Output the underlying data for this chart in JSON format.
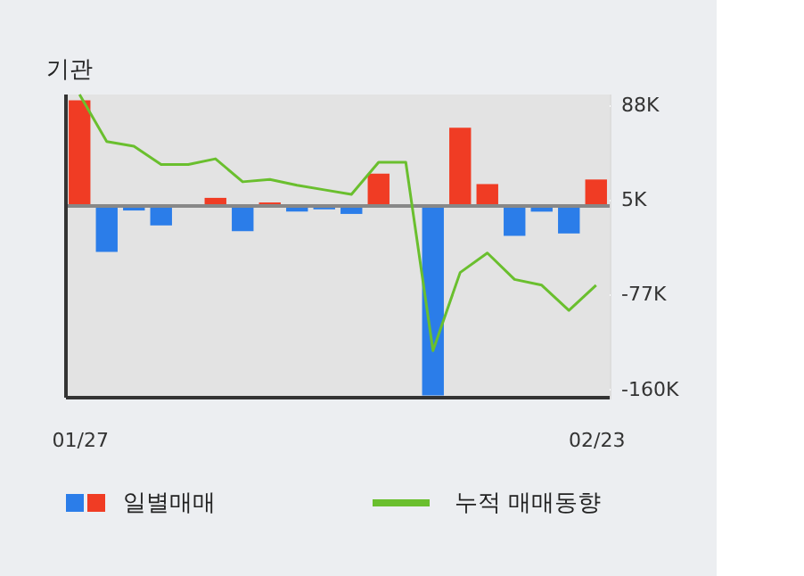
{
  "chart_data": {
    "type": "bar",
    "title": "기관",
    "categories": [
      "01/27",
      null,
      null,
      null,
      null,
      null,
      null,
      null,
      null,
      null,
      null,
      null,
      null,
      null,
      null,
      null,
      null,
      null,
      null,
      "02/23"
    ],
    "series": [
      {
        "name": "일별매매",
        "values": [
          92,
          -40,
          -4,
          -17,
          0,
          7,
          -22,
          3,
          -5,
          -3,
          -7,
          28,
          0,
          -165,
          68,
          19,
          -26,
          -5,
          -24,
          23
        ],
        "colors": [
          "#f03c24",
          "#2b7de9",
          "#2b7de9",
          "#2b7de9",
          "#f03c24",
          "#f03c24",
          "#2b7de9",
          "#f03c24",
          "#2b7de9",
          "#2b7de9",
          "#2b7de9",
          "#f03c24",
          "#f03c24",
          "#2b7de9",
          "#f03c24",
          "#f03c24",
          "#2b7de9",
          "#2b7de9",
          "#2b7de9",
          "#f03c24"
        ]
      },
      {
        "name": "누적 매매동향",
        "type": "line",
        "color": "#6abf2e",
        "values": [
          97,
          56,
          52,
          36,
          36,
          41,
          21,
          23,
          18,
          14,
          10,
          38,
          38,
          -126,
          -58,
          -41,
          -64,
          -69,
          -91,
          -69
        ]
      }
    ],
    "ylim": [
      -167,
      97
    ],
    "yticks": [
      {
        "value": 88,
        "label": "88K"
      },
      {
        "value": 5,
        "label": "5K"
      },
      {
        "value": -77,
        "label": "-77K"
      },
      {
        "value": -160,
        "label": "-160K"
      }
    ],
    "ref_lines": [
      {
        "axis": "y",
        "value": 0,
        "color": "#888888"
      }
    ],
    "grid": true,
    "legend": "bottom"
  }
}
